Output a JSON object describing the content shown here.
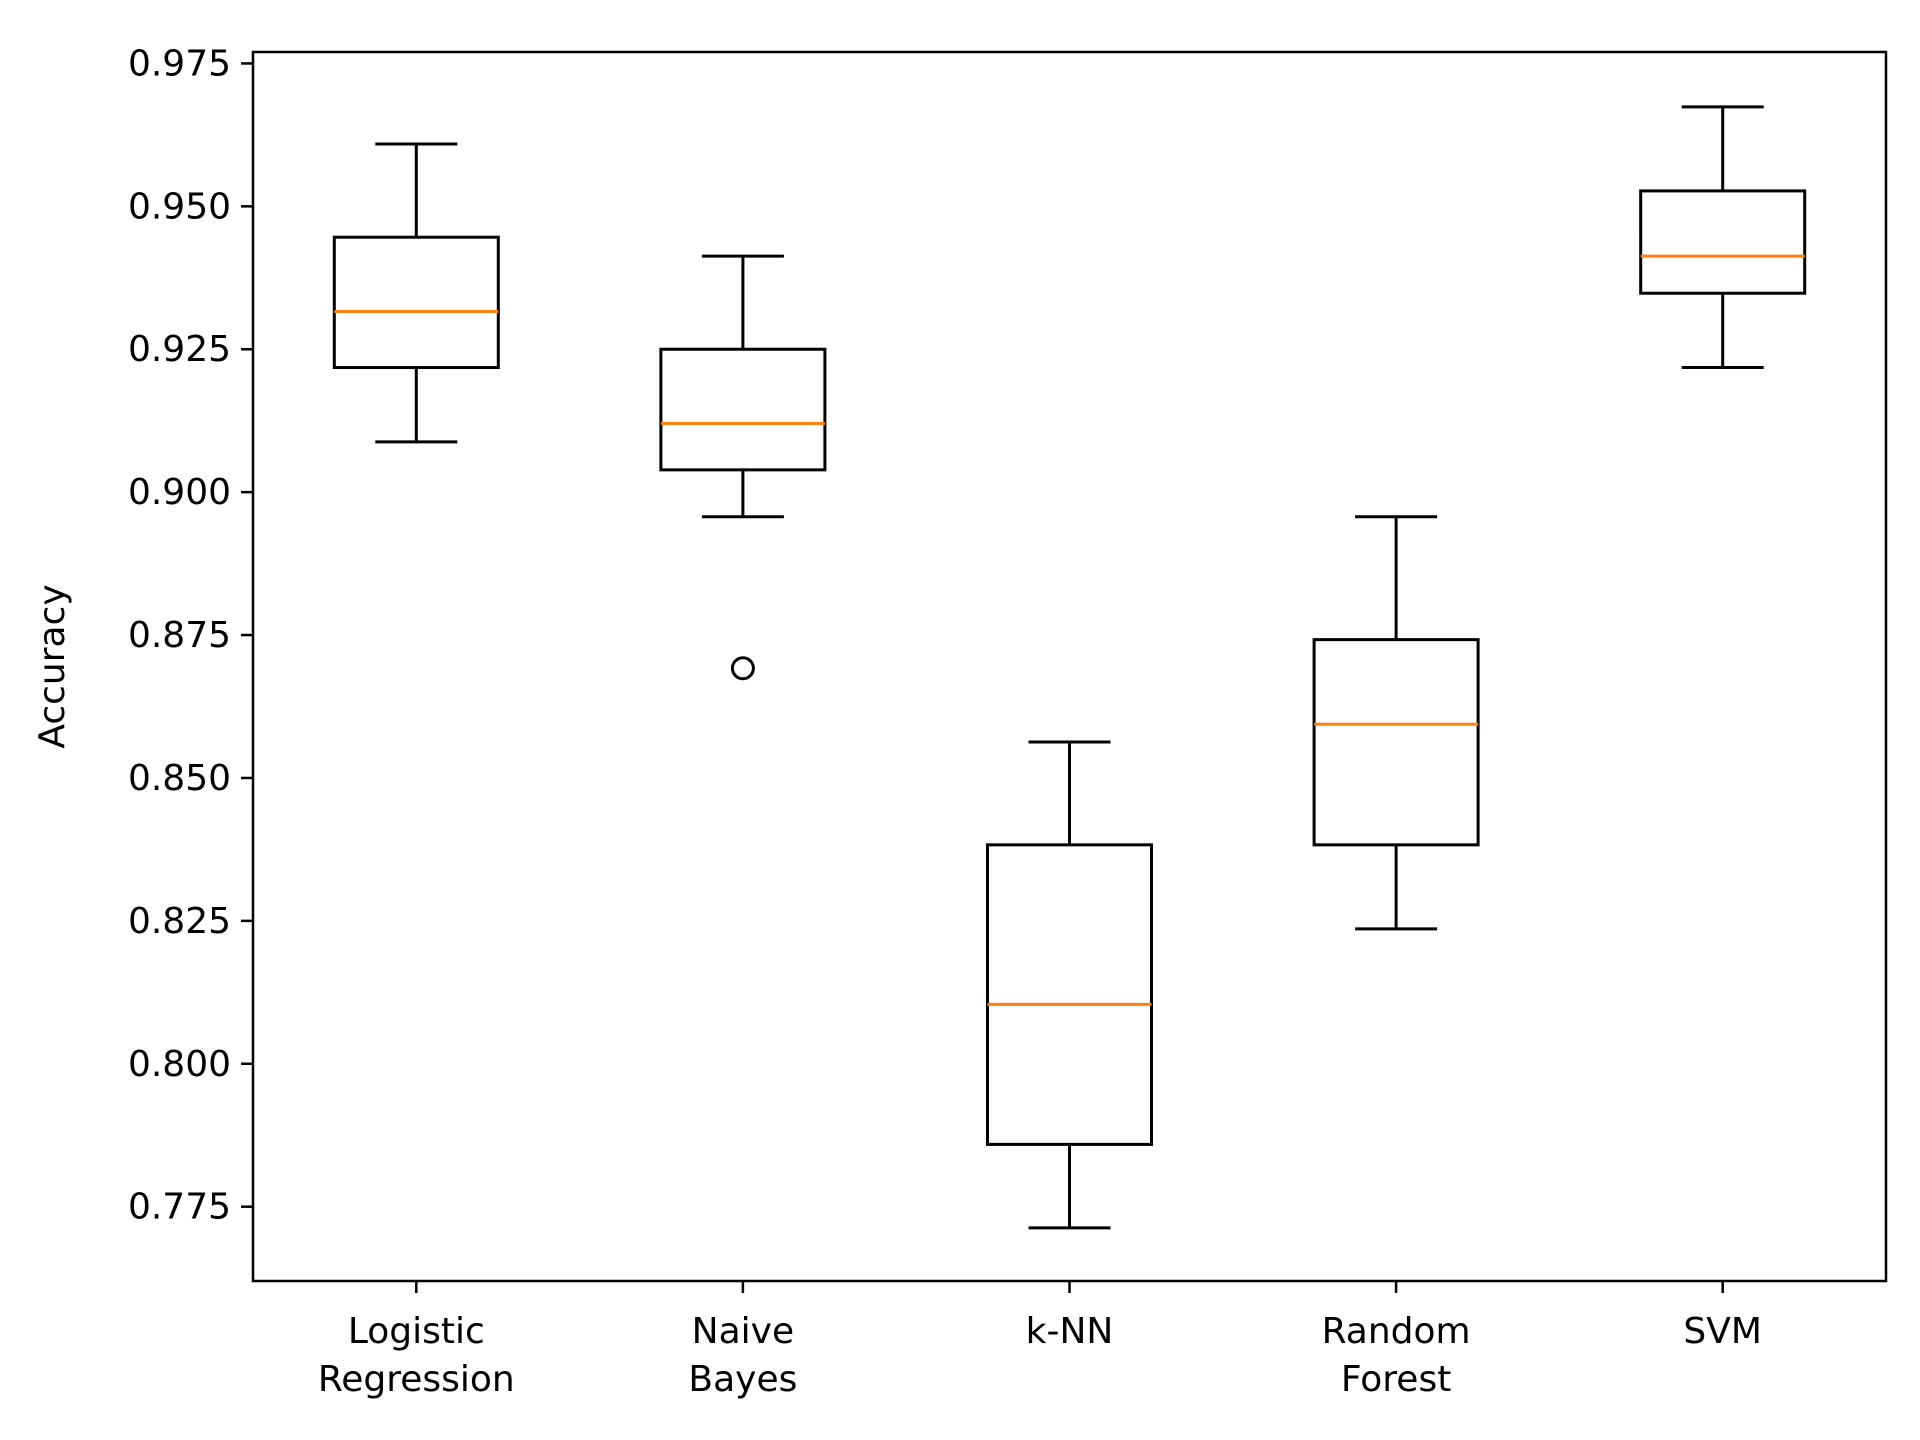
{
  "chart_data": {
    "type": "boxplot",
    "ylabel": "Accuracy",
    "xlabel": "",
    "title": "",
    "ylim": [
      0.762,
      0.977
    ],
    "yticks": [
      "0.775",
      "0.800",
      "0.825",
      "0.850",
      "0.875",
      "0.900",
      "0.925",
      "0.950",
      "0.975"
    ],
    "grid": false,
    "legend": "none",
    "colors": {
      "box": "#000000",
      "median": "#ff7f0e",
      "flier": "#000000"
    },
    "categories": [
      {
        "label": [
          "Logistic",
          "Regression"
        ],
        "whislo": 0.9088,
        "q1": 0.9218,
        "med": 0.9316,
        "q3": 0.9446,
        "whishi": 0.9609,
        "fliers": []
      },
      {
        "label": [
          "Naive",
          "Bayes"
        ],
        "whislo": 0.8957,
        "q1": 0.9039,
        "med": 0.912,
        "q3": 0.925,
        "whishi": 0.9413,
        "fliers": [
          0.8692
        ]
      },
      {
        "label": [
          "k-NN"
        ],
        "whislo": 0.7713,
        "q1": 0.7859,
        "med": 0.8104,
        "q3": 0.8383,
        "whishi": 0.8563,
        "fliers": []
      },
      {
        "label": [
          "Random",
          "Forest"
        ],
        "whislo": 0.8236,
        "q1": 0.8383,
        "med": 0.8594,
        "q3": 0.8742,
        "whishi": 0.8957,
        "fliers": []
      },
      {
        "label": [
          "SVM"
        ],
        "whislo": 0.9218,
        "q1": 0.9348,
        "med": 0.9413,
        "q3": 0.9527,
        "whishi": 0.9674,
        "fliers": []
      }
    ]
  }
}
